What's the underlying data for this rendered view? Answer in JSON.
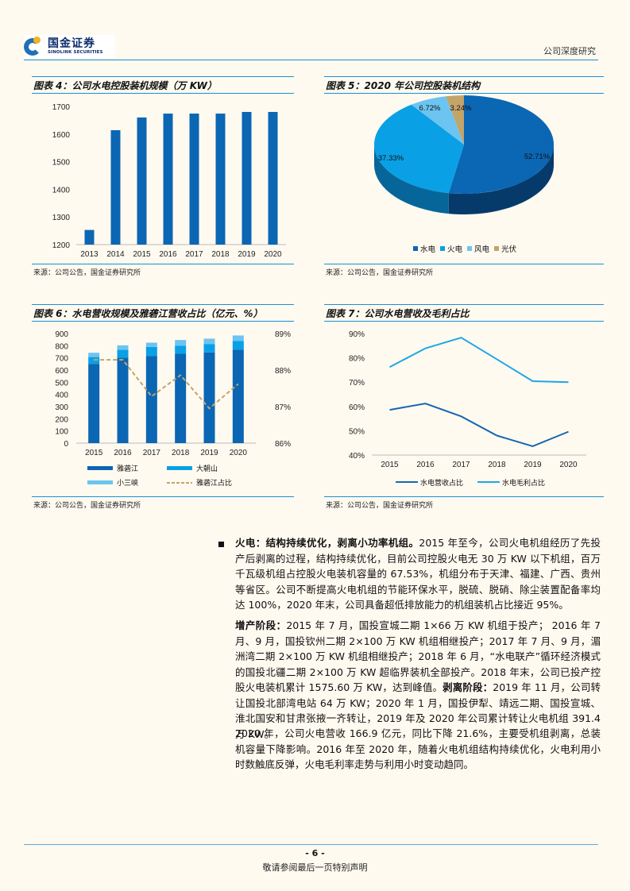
{
  "header": {
    "logo_cn": "国金证券",
    "logo_en": "SINOLINK SECURITIES",
    "right_label": "公司深度研究"
  },
  "colors": {
    "accent_line": "#1a8fd6",
    "bar_dark": "#0b66b3",
    "bar_mid": "#0aa0e6",
    "bar_light": "#6cc4f0",
    "tan": "#c3a46a",
    "line_dark": "#1767b0",
    "line_light": "#1fa6e6"
  },
  "figures": {
    "fig4": {
      "title": "图表 4：公司水电控股装机规模（万 KW）",
      "source": "来源：公司公告，国金证券研究所"
    },
    "fig5": {
      "title": "图表 5：2020 年公司控股装机结构",
      "source": "来源：公司公告，国金证券研究所"
    },
    "fig6": {
      "title": "图表 6：水电营收规模及雅砻江营收占比（亿元、%）",
      "source": "来源：公司公告，国金证券研究所"
    },
    "fig7": {
      "title": "图表 7：公司水电营收及毛利占比",
      "source": "来源：公司公告，国金证券研究所"
    }
  },
  "chart_data": [
    {
      "id": "fig4",
      "type": "bar",
      "title": "公司水电控股装机规模（万KW）",
      "categories": [
        "2013",
        "2014",
        "2015",
        "2016",
        "2017",
        "2018",
        "2019",
        "2020"
      ],
      "values": [
        1253,
        1614,
        1660,
        1674,
        1674,
        1674,
        1680,
        1680
      ],
      "ylim": [
        1200,
        1700
      ],
      "yticks": [
        1200,
        1300,
        1400,
        1500,
        1600,
        1700
      ],
      "xlabel": "",
      "ylabel": "",
      "grid": false,
      "legend": "none"
    },
    {
      "id": "fig5",
      "type": "pie",
      "title": "2020年公司控股装机结构",
      "labels": [
        "水电",
        "火电",
        "风电",
        "光伏"
      ],
      "values": [
        52.71,
        37.33,
        6.72,
        3.24
      ],
      "value_labels": [
        "52.71%",
        "37.33%",
        "6.72%",
        "3.24%"
      ],
      "colors": [
        "#0b66b3",
        "#0aa0e6",
        "#6cc4f0",
        "#c3a46a"
      ],
      "legend": "bottom",
      "style": "3d"
    },
    {
      "id": "fig6",
      "type": "bar",
      "stacked": true,
      "title": "水电营收规模及雅砻江营收占比（亿元、%）",
      "categories": [
        "2015",
        "2016",
        "2017",
        "2018",
        "2019",
        "2020"
      ],
      "series": [
        {
          "name": "雅砻江",
          "values": [
            651,
            703,
            714,
            734,
            745,
            766
          ],
          "color": "#0b66b3"
        },
        {
          "name": "大朝山",
          "values": [
            56,
            63,
            76,
            65,
            69,
            72
          ],
          "color": "#0aa0e6"
        },
        {
          "name": "小三峡",
          "values": [
            35,
            37,
            35,
            48,
            44,
            46
          ],
          "color": "#6cc4f0"
        }
      ],
      "line_series": {
        "name": "雅砻江占比",
        "axis": "right",
        "values": [
          88.28,
          88.28,
          87.28,
          87.86,
          86.95,
          87.62
        ],
        "color": "#c3a46a",
        "dashed": true
      },
      "ylim": [
        0,
        900
      ],
      "yticks": [
        0,
        100,
        200,
        300,
        400,
        500,
        600,
        700,
        800,
        900
      ],
      "y2lim": [
        86,
        89
      ],
      "y2ticks": [
        "86%",
        "87%",
        "88%",
        "89%"
      ],
      "legend": "bottom",
      "grid": false
    },
    {
      "id": "fig7",
      "type": "line",
      "title": "公司水电营收及毛利占比",
      "x": [
        "2015",
        "2016",
        "2017",
        "2018",
        "2019",
        "2020"
      ],
      "series": [
        {
          "name": "水电营收占比",
          "values": [
            58.6,
            61.2,
            55.9,
            48.0,
            43.6,
            49.6
          ],
          "color": "#1767b0"
        },
        {
          "name": "水电毛利占比",
          "values": [
            76.2,
            83.9,
            88.3,
            79.4,
            70.4,
            70.0
          ],
          "color": "#1fa6e6"
        }
      ],
      "ylim": [
        40,
        90
      ],
      "yticks": [
        "40%",
        "50%",
        "60%",
        "70%",
        "80%",
        "90%"
      ],
      "legend": "bottom",
      "grid": false
    }
  ],
  "body": {
    "section1": {
      "heading": "火电：结构持续优化，剥离小功率机组。",
      "text": "2015 年至今，公司火电机组经历了先投产后剥离的过程，结构持续优化，目前公司控股火电无 30 万 KW 以下机组，百万千瓦级机组占控股火电装机容量的 67.53%，机组分布于天津、福建、广西、贵州等省区。公司不断提高火电机组的节能环保水平，脱硫、脱硝、除尘装置配备率均达 100%，2020 年末，公司具备超低排放能力的机组装机占比接近 95%。"
    },
    "section2": {
      "heading_a": "增产阶段：",
      "text_a": "2015 年 7 月，国投宣城二期 1×66 万 KW 机组于投产； 2016 年 7 月、9 月，国投钦州二期 2×100 万 KW 机组相继投产；2017 年 7 月、9 月，湄洲湾二期 2×100 万 KW 机组相继投产；2018 年 6 月，“水电联产”循环经济模式的国投北疆二期 2×100 万 KW 超临界装机全部投产。2018 年末，公司已投产控股火电装机累计 1575.60 万 KW，达到峰值。",
      "heading_b": "剥离阶段：",
      "text_b": "2019 年 11 月，公司转让国投北部湾电站 64 万 KW；2020 年 1 月，国投伊犁、靖远二期、国投宣城、淮北国安和甘肃张掖一齐转让，2019 年及 2020 年公司累计转让火电机组 391.4 万 KW。"
    },
    "section3": {
      "text": "2020 年，公司火电营收 166.9 亿元，同比下降 21.6%，主要受机组剥离，总装机容量下降影响。2016 年至 2020 年，随着火电机组结构持续优化，火电利用小时数触底反弹，火电毛利率走势与利用小时变动趋同。"
    }
  },
  "footer": {
    "page_number": "- 6 -",
    "disclaimer": "敬请参阅最后一页特别声明"
  }
}
